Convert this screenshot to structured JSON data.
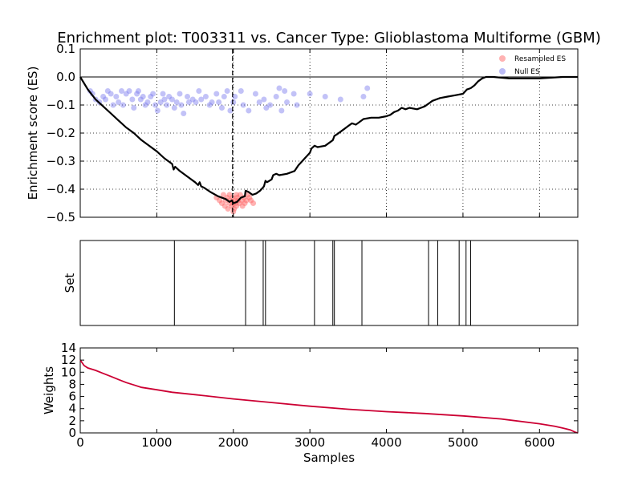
{
  "chart_data": {
    "title": "Enrichment plot: T003311 vs. Cancer Type: Glioblastoma Multiforme (GBM)",
    "xlabel": "Samples",
    "xlim": [
      0,
      6500
    ],
    "x_ticks": [
      0,
      1000,
      2000,
      3000,
      4000,
      5000,
      6000
    ],
    "panels": [
      {
        "id": "es",
        "type": "line",
        "ylabel": "Enrichment score (ES)",
        "ylim": [
          -0.5,
          0.1
        ],
        "y_ticks": [
          0.1,
          0.0,
          -0.1,
          -0.2,
          -0.3,
          -0.4,
          -0.5
        ],
        "grid": true,
        "legend": "top-right",
        "colors": {
          "line": "#000000",
          "resampled": "#ff6666",
          "null": "#7777ee"
        },
        "series": [
          {
            "name": "Resampled ES",
            "type": "scatter",
            "color": "#ff6666",
            "points": [
              [
                1780,
                -0.43
              ],
              [
                1820,
                -0.44
              ],
              [
                1850,
                -0.45
              ],
              [
                1870,
                -0.42
              ],
              [
                1890,
                -0.46
              ],
              [
                1900,
                -0.44
              ],
              [
                1920,
                -0.43
              ],
              [
                1930,
                -0.47
              ],
              [
                1950,
                -0.45
              ],
              [
                1960,
                -0.44
              ],
              [
                1980,
                -0.46
              ],
              [
                1990,
                -0.43
              ],
              [
                2000,
                -0.45
              ],
              [
                2010,
                -0.47
              ],
              [
                2020,
                -0.44
              ],
              [
                2030,
                -0.45
              ],
              [
                2040,
                -0.46
              ],
              [
                2050,
                -0.43
              ],
              [
                2060,
                -0.44
              ],
              [
                2080,
                -0.45
              ],
              [
                2090,
                -0.42
              ],
              [
                2110,
                -0.44
              ],
              [
                2120,
                -0.46
              ],
              [
                2140,
                -0.43
              ],
              [
                2150,
                -0.45
              ],
              [
                2170,
                -0.44
              ],
              [
                2190,
                -0.42
              ],
              [
                2210,
                -0.43
              ],
              [
                2230,
                -0.44
              ],
              [
                2260,
                -0.45
              ],
              [
                1950,
                -0.42
              ],
              [
                2040,
                -0.42
              ],
              [
                2000,
                -0.48
              ]
            ]
          },
          {
            "name": "Null ES",
            "type": "scatter",
            "color": "#7777ee",
            "points": [
              [
                130,
                -0.05
              ],
              [
                160,
                -0.06
              ],
              [
                200,
                -0.08
              ],
              [
                250,
                -0.09
              ],
              [
                300,
                -0.07
              ],
              [
                330,
                -0.08
              ],
              [
                360,
                -0.05
              ],
              [
                400,
                -0.06
              ],
              [
                430,
                -0.1
              ],
              [
                470,
                -0.07
              ],
              [
                500,
                -0.09
              ],
              [
                540,
                -0.05
              ],
              [
                560,
                -0.1
              ],
              [
                600,
                -0.06
              ],
              [
                640,
                -0.05
              ],
              [
                680,
                -0.08
              ],
              [
                700,
                -0.11
              ],
              [
                740,
                -0.06
              ],
              [
                760,
                -0.05
              ],
              [
                790,
                -0.08
              ],
              [
                820,
                -0.07
              ],
              [
                850,
                -0.1
              ],
              [
                880,
                -0.09
              ],
              [
                920,
                -0.07
              ],
              [
                950,
                -0.06
              ],
              [
                980,
                -0.1
              ],
              [
                1010,
                -0.12
              ],
              [
                1050,
                -0.09
              ],
              [
                1080,
                -0.06
              ],
              [
                1100,
                -0.08
              ],
              [
                1130,
                -0.1
              ],
              [
                1160,
                -0.07
              ],
              [
                1200,
                -0.08
              ],
              [
                1230,
                -0.11
              ],
              [
                1260,
                -0.09
              ],
              [
                1300,
                -0.06
              ],
              [
                1320,
                -0.1
              ],
              [
                1350,
                -0.13
              ],
              [
                1400,
                -0.07
              ],
              [
                1420,
                -0.09
              ],
              [
                1470,
                -0.08
              ],
              [
                1510,
                -0.09
              ],
              [
                1550,
                -0.05
              ],
              [
                1580,
                -0.08
              ],
              [
                1640,
                -0.07
              ],
              [
                1690,
                -0.1
              ],
              [
                1720,
                -0.09
              ],
              [
                1780,
                -0.06
              ],
              [
                1810,
                -0.09
              ],
              [
                1850,
                -0.11
              ],
              [
                1880,
                -0.07
              ],
              [
                1920,
                -0.05
              ],
              [
                1960,
                -0.12
              ],
              [
                2000,
                -0.09
              ],
              [
                2020,
                -0.07
              ],
              [
                2100,
                -0.05
              ],
              [
                2130,
                -0.1
              ],
              [
                2200,
                -0.12
              ],
              [
                2290,
                -0.06
              ],
              [
                2340,
                -0.09
              ],
              [
                2400,
                -0.08
              ],
              [
                2430,
                -0.11
              ],
              [
                2480,
                -0.1
              ],
              [
                2560,
                -0.07
              ],
              [
                2600,
                -0.04
              ],
              [
                2630,
                -0.12
              ],
              [
                2670,
                -0.05
              ],
              [
                2700,
                -0.09
              ],
              [
                2790,
                -0.06
              ],
              [
                2830,
                -0.1
              ],
              [
                3000,
                -0.06
              ],
              [
                3200,
                -0.07
              ],
              [
                3400,
                -0.08
              ],
              [
                3700,
                -0.07
              ],
              [
                3750,
                -0.04
              ]
            ]
          },
          {
            "name": "",
            "type": "line",
            "color": "#000000",
            "points": [
              [
                0,
                0
              ],
              [
                100,
                -0.045
              ],
              [
                200,
                -0.08
              ],
              [
                300,
                -0.105
              ],
              [
                400,
                -0.13
              ],
              [
                500,
                -0.155
              ],
              [
                600,
                -0.18
              ],
              [
                700,
                -0.2
              ],
              [
                800,
                -0.225
              ],
              [
                900,
                -0.245
              ],
              [
                1000,
                -0.265
              ],
              [
                1100,
                -0.29
              ],
              [
                1200,
                -0.31
              ],
              [
                1220,
                -0.33
              ],
              [
                1240,
                -0.32
              ],
              [
                1300,
                -0.335
              ],
              [
                1400,
                -0.355
              ],
              [
                1500,
                -0.375
              ],
              [
                1540,
                -0.385
              ],
              [
                1560,
                -0.375
              ],
              [
                1580,
                -0.39
              ],
              [
                1620,
                -0.395
              ],
              [
                1700,
                -0.41
              ],
              [
                1800,
                -0.425
              ],
              [
                1900,
                -0.435
              ],
              [
                1950,
                -0.445
              ],
              [
                1980,
                -0.44
              ],
              [
                2000,
                -0.45
              ],
              [
                2050,
                -0.445
              ],
              [
                2100,
                -0.43
              ],
              [
                2150,
                -0.425
              ],
              [
                2160,
                -0.405
              ],
              [
                2200,
                -0.41
              ],
              [
                2250,
                -0.42
              ],
              [
                2300,
                -0.415
              ],
              [
                2350,
                -0.405
              ],
              [
                2400,
                -0.39
              ],
              [
                2420,
                -0.37
              ],
              [
                2440,
                -0.375
              ],
              [
                2500,
                -0.365
              ],
              [
                2520,
                -0.35
              ],
              [
                2560,
                -0.345
              ],
              [
                2600,
                -0.35
              ],
              [
                2700,
                -0.345
              ],
              [
                2800,
                -0.335
              ],
              [
                2850,
                -0.315
              ],
              [
                2900,
                -0.3
              ],
              [
                2950,
                -0.285
              ],
              [
                3000,
                -0.27
              ],
              [
                3020,
                -0.255
              ],
              [
                3060,
                -0.245
              ],
              [
                3100,
                -0.25
              ],
              [
                3200,
                -0.245
              ],
              [
                3250,
                -0.235
              ],
              [
                3300,
                -0.225
              ],
              [
                3320,
                -0.21
              ],
              [
                3350,
                -0.205
              ],
              [
                3400,
                -0.195
              ],
              [
                3450,
                -0.185
              ],
              [
                3500,
                -0.175
              ],
              [
                3550,
                -0.165
              ],
              [
                3600,
                -0.17
              ],
              [
                3650,
                -0.16
              ],
              [
                3700,
                -0.15
              ],
              [
                3800,
                -0.145
              ],
              [
                3900,
                -0.145
              ],
              [
                4000,
                -0.14
              ],
              [
                4050,
                -0.135
              ],
              [
                4100,
                -0.125
              ],
              [
                4150,
                -0.12
              ],
              [
                4200,
                -0.11
              ],
              [
                4250,
                -0.115
              ],
              [
                4300,
                -0.11
              ],
              [
                4400,
                -0.115
              ],
              [
                4500,
                -0.105
              ],
              [
                4550,
                -0.095
              ],
              [
                4600,
                -0.085
              ],
              [
                4700,
                -0.075
              ],
              [
                4800,
                -0.07
              ],
              [
                4900,
                -0.065
              ],
              [
                5000,
                -0.06
              ],
              [
                5050,
                -0.045
              ],
              [
                5100,
                -0.04
              ],
              [
                5150,
                -0.03
              ],
              [
                5200,
                -0.015
              ],
              [
                5250,
                -0.005
              ],
              [
                5300,
                0.0
              ],
              [
                5400,
                0.0
              ],
              [
                5600,
                -0.005
              ],
              [
                6000,
                -0.005
              ],
              [
                6300,
                0.0
              ],
              [
                6500,
                0.0
              ]
            ]
          }
        ],
        "annotation": {
          "type": "vline",
          "x": 1990,
          "style": "dashed"
        }
      },
      {
        "id": "set",
        "type": "rug",
        "ylabel": "Set",
        "hits": [
          1230,
          2160,
          2390,
          2420,
          3060,
          3300,
          3320,
          3680,
          4550,
          4670,
          4950,
          5040,
          5100
        ]
      },
      {
        "id": "weights",
        "type": "line",
        "ylabel": "Weights",
        "ylim": [
          0,
          14
        ],
        "y_ticks": [
          0,
          2,
          4,
          6,
          8,
          10,
          12,
          14
        ],
        "color": "#cc0033",
        "points": [
          [
            0,
            12
          ],
          [
            50,
            11.1
          ],
          [
            100,
            10.7
          ],
          [
            200,
            10.3
          ],
          [
            300,
            9.8
          ],
          [
            400,
            9.3
          ],
          [
            500,
            8.8
          ],
          [
            600,
            8.3
          ],
          [
            700,
            7.9
          ],
          [
            800,
            7.5
          ],
          [
            1000,
            7.1
          ],
          [
            1200,
            6.7
          ],
          [
            1500,
            6.3
          ],
          [
            2000,
            5.6
          ],
          [
            2500,
            5.0
          ],
          [
            3000,
            4.4
          ],
          [
            3500,
            3.9
          ],
          [
            4000,
            3.5
          ],
          [
            4500,
            3.2
          ],
          [
            5000,
            2.8
          ],
          [
            5500,
            2.3
          ],
          [
            6000,
            1.5
          ],
          [
            6200,
            1.1
          ],
          [
            6300,
            0.8
          ],
          [
            6400,
            0.5
          ],
          [
            6470,
            0.1
          ],
          [
            6500,
            0
          ]
        ]
      }
    ]
  }
}
